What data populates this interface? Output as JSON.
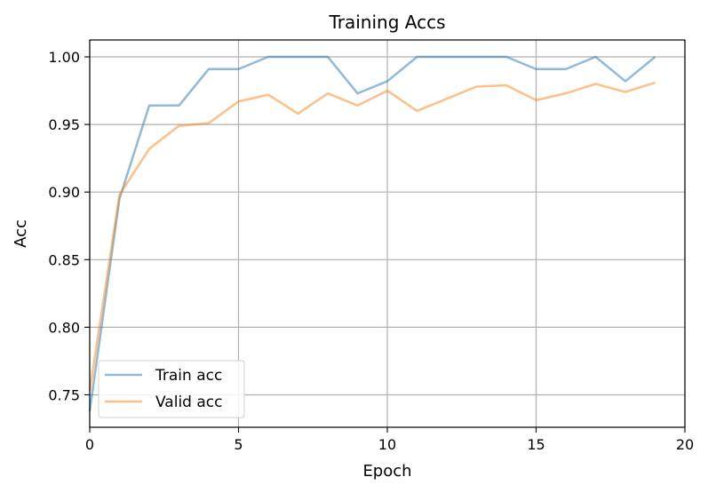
{
  "chart_data": {
    "type": "line",
    "title": "Training Accs",
    "xlabel": "Epoch",
    "ylabel": "Acc",
    "xlim": [
      0,
      20
    ],
    "ylim": [
      0.726,
      1.0125
    ],
    "x_ticks": [
      0,
      5,
      10,
      15,
      20
    ],
    "x_tick_labels": [
      "0",
      "5",
      "10",
      "15",
      "20"
    ],
    "y_ticks": [
      0.75,
      0.8,
      0.85,
      0.9,
      0.95,
      1.0
    ],
    "y_tick_labels": [
      "0.75",
      "0.80",
      "0.85",
      "0.90",
      "0.95",
      "1.00"
    ],
    "grid": true,
    "legend_position": "lower-left",
    "x": [
      0,
      1,
      2,
      3,
      4,
      5,
      6,
      7,
      8,
      9,
      10,
      11,
      12,
      13,
      14,
      15,
      16,
      17,
      18,
      19
    ],
    "series": [
      {
        "name": "Train acc",
        "color": "#1f77b4",
        "values": [
          0.738,
          0.895,
          0.964,
          0.964,
          0.991,
          0.991,
          1.0,
          1.0,
          1.0,
          0.973,
          0.982,
          1.0,
          1.0,
          1.0,
          1.0,
          0.991,
          0.991,
          1.0,
          0.982,
          1.0
        ]
      },
      {
        "name": "Valid acc",
        "color": "#ff7f0e",
        "values": [
          0.753,
          0.898,
          0.932,
          0.949,
          0.951,
          0.967,
          0.972,
          0.958,
          0.973,
          0.964,
          0.975,
          0.96,
          0.969,
          0.978,
          0.979,
          0.968,
          0.973,
          0.98,
          0.974,
          0.981
        ]
      }
    ]
  }
}
